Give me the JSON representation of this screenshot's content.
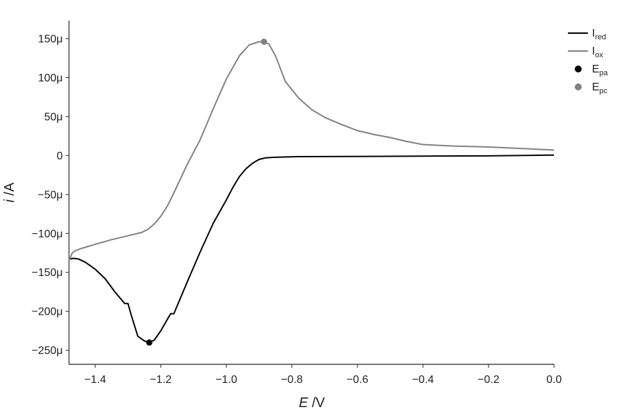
{
  "chart_data": {
    "type": "line",
    "title": "",
    "xlabel": "E /V",
    "xlabel_var": "E",
    "xlabel_unit": " /V",
    "ylabel": "i /A",
    "ylabel_var": "i",
    "ylabel_unit": " /A",
    "xlim": [
      -1.48,
      0.0
    ],
    "ylim": [
      -0.000268,
      0.000173
    ],
    "x_ticks": [
      -1.4,
      -1.2,
      -1.0,
      -0.8,
      -0.6,
      -0.4,
      -0.2,
      0.0
    ],
    "x_tick_labels": [
      "−1.4",
      "−1.2",
      "−1.0",
      "−0.8",
      "−0.6",
      "−0.4",
      "−0.2",
      "0.0"
    ],
    "y_ticks": [
      0.00015,
      0.0001,
      5e-05,
      0,
      -5e-05,
      -0.0001,
      -0.00015,
      -0.0002,
      -0.00025
    ],
    "y_tick_labels": [
      "150μ",
      "100μ",
      "50μ",
      "0",
      "−50μ",
      "−100μ",
      "−150μ",
      "−200μ",
      "−250μ"
    ],
    "grid": false,
    "legend_placement": "top-right outside",
    "series": [
      {
        "name": "I",
        "name_sub": "red",
        "color": "#000000",
        "kind": "line",
        "x": [
          -1.48,
          -1.465,
          -1.45,
          -1.43,
          -1.4,
          -1.37,
          -1.34,
          -1.31,
          -1.3,
          -1.29,
          -1.27,
          -1.25,
          -1.235,
          -1.22,
          -1.2,
          -1.17,
          -1.16,
          -1.12,
          -1.08,
          -1.04,
          -1.0,
          -0.98,
          -0.96,
          -0.94,
          -0.92,
          -0.9,
          -0.88,
          -0.85,
          -0.78,
          -0.6,
          -0.4,
          -0.2,
          0.0
        ],
        "y": [
          -0.000133,
          -0.000132,
          -0.000133,
          -0.000137,
          -0.000146,
          -0.000158,
          -0.000175,
          -0.00019,
          -0.00019,
          -0.000205,
          -0.000232,
          -0.000238,
          -0.00024,
          -0.000237,
          -0.000225,
          -0.000203,
          -0.000203,
          -0.000163,
          -0.000124,
          -8.7e-05,
          -5.7e-05,
          -4.1e-05,
          -2.7e-05,
          -1.7e-05,
          -1e-05,
          -5e-06,
          -3e-06,
          -2.2e-06,
          -1.5e-06,
          -1.2e-06,
          -8e-07,
          -5e-07,
          5e-07
        ]
      },
      {
        "name": "I",
        "name_sub": "ox",
        "color": "#808080",
        "kind": "line",
        "x": [
          -1.48,
          -1.47,
          -1.46,
          -1.44,
          -1.4,
          -1.35,
          -1.3,
          -1.26,
          -1.24,
          -1.22,
          -1.2,
          -1.18,
          -1.16,
          -1.12,
          -1.08,
          -1.04,
          -1.0,
          -0.96,
          -0.93,
          -0.9,
          -0.885,
          -0.87,
          -0.85,
          -0.82,
          -0.78,
          -0.74,
          -0.7,
          -0.65,
          -0.6,
          -0.55,
          -0.5,
          -0.45,
          -0.4,
          -0.3,
          -0.2,
          -0.1,
          0.0
        ],
        "y": [
          -0.000135,
          -0.000125,
          -0.000122,
          -0.000119,
          -0.000114,
          -0.000108,
          -0.000103,
          -9.9e-05,
          -9.5e-05,
          -8.8e-05,
          -7.8e-05,
          -6.5e-05,
          -4.8e-05,
          -1.2e-05,
          2e-05,
          6e-05,
          9.8e-05,
          0.000128,
          0.000142,
          0.000146,
          0.000146,
          0.000143,
          0.000128,
          9.5e-05,
          7.4e-05,
          5.9e-05,
          4.9e-05,
          4e-05,
          3.2e-05,
          2.7e-05,
          2.3e-05,
          1.8e-05,
          1.4e-05,
          1.2e-05,
          1.1e-05,
          9e-06,
          7e-06
        ]
      },
      {
        "name": "E",
        "name_sub": "pa",
        "color": "#000000",
        "kind": "point",
        "x": [
          -1.235
        ],
        "y": [
          -0.00024
        ]
      },
      {
        "name": "E",
        "name_sub": "pc",
        "color": "#808080",
        "kind": "point",
        "x": [
          -0.885
        ],
        "y": [
          0.000146
        ]
      }
    ]
  }
}
